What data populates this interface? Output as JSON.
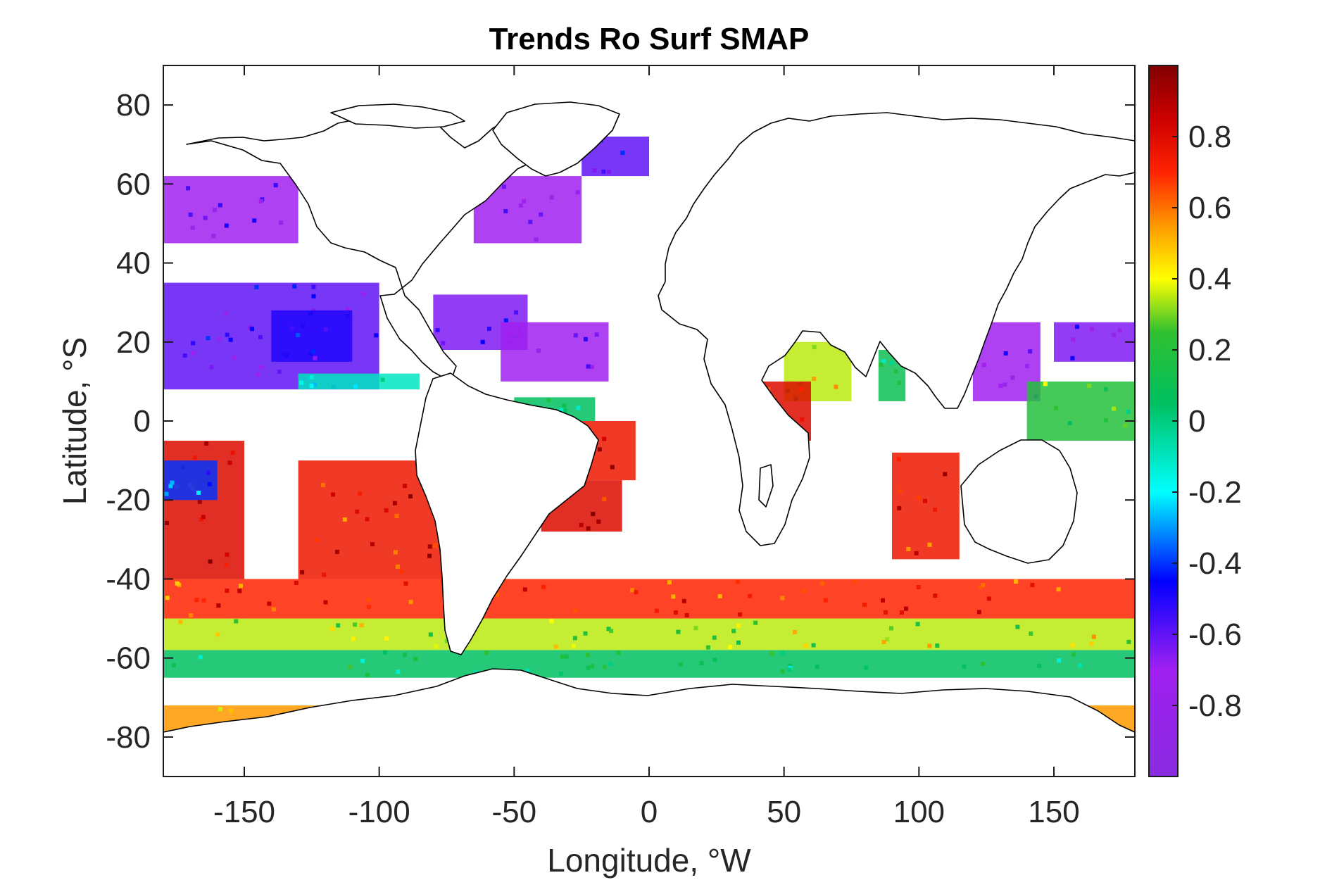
{
  "chart_data": {
    "type": "heatmap",
    "title": "Trends Ro Surf SMAP",
    "xlabel": "Longitude, °W",
    "ylabel": "Latitude, °S",
    "xlim": [
      -180,
      180
    ],
    "ylim": [
      -90,
      90
    ],
    "x_ticks": [
      -150,
      -100,
      -50,
      0,
      50,
      100,
      150
    ],
    "x_tick_labels": [
      "-150",
      "-100",
      "-50",
      "0",
      "50",
      "100",
      "150"
    ],
    "y_ticks": [
      80,
      60,
      40,
      20,
      0,
      -20,
      -40,
      -60,
      -80
    ],
    "y_tick_labels": [
      "80",
      "60",
      "40",
      "20",
      "0",
      "-20",
      "-40",
      "-60",
      "-80"
    ],
    "grid": false,
    "colorbar": {
      "placement": "right",
      "clim": [
        -1,
        1
      ],
      "ticks": [
        0.8,
        0.6,
        0.4,
        0.2,
        0,
        -0.2,
        -0.4,
        -0.6,
        -0.8
      ],
      "tick_labels": [
        "0.8",
        "0.6",
        "0.4",
        "0.2",
        "0",
        "-0.2",
        "-0.4",
        "-0.6",
        "-0.8"
      ],
      "colormap_stops": [
        {
          "value": -1.0,
          "color": "#8a2be2"
        },
        {
          "value": -0.7,
          "color": "#a020f0"
        },
        {
          "value": -0.45,
          "color": "#0000ff"
        },
        {
          "value": -0.2,
          "color": "#00ffff"
        },
        {
          "value": 0.05,
          "color": "#00c060"
        },
        {
          "value": 0.25,
          "color": "#30c030"
        },
        {
          "value": 0.4,
          "color": "#ffff00"
        },
        {
          "value": 0.55,
          "color": "#ff9900"
        },
        {
          "value": 0.7,
          "color": "#ff2200"
        },
        {
          "value": 0.85,
          "color": "#cc0000"
        },
        {
          "value": 1.0,
          "color": "#800000"
        }
      ]
    },
    "regions": [
      {
        "value": -0.7,
        "lon": [
          -180,
          -130
        ],
        "lat": [
          45,
          62
        ]
      },
      {
        "value": -0.6,
        "lon": [
          -180,
          -100
        ],
        "lat": [
          8,
          35
        ]
      },
      {
        "value": -0.5,
        "lon": [
          -140,
          -110
        ],
        "lat": [
          15,
          28
        ]
      },
      {
        "value": -0.1,
        "lon": [
          -130,
          -85
        ],
        "lat": [
          8,
          12
        ]
      },
      {
        "value": -0.7,
        "lon": [
          -65,
          -25
        ],
        "lat": [
          45,
          62
        ]
      },
      {
        "value": -0.6,
        "lon": [
          -25,
          0
        ],
        "lat": [
          62,
          72
        ]
      },
      {
        "value": -0.65,
        "lon": [
          -80,
          -45
        ],
        "lat": [
          18,
          32
        ]
      },
      {
        "value": -0.7,
        "lon": [
          -55,
          -15
        ],
        "lat": [
          10,
          25
        ]
      },
      {
        "value": 0.05,
        "lon": [
          -50,
          -20
        ],
        "lat": [
          0,
          6
        ]
      },
      {
        "value": 0.75,
        "lon": [
          -45,
          -5
        ],
        "lat": [
          -15,
          0
        ]
      },
      {
        "value": 0.8,
        "lon": [
          -40,
          -10
        ],
        "lat": [
          -28,
          -15
        ]
      },
      {
        "value": 0.35,
        "lon": [
          50,
          75
        ],
        "lat": [
          5,
          20
        ]
      },
      {
        "value": 0.8,
        "lon": [
          40,
          60
        ],
        "lat": [
          -5,
          10
        ]
      },
      {
        "value": 0.1,
        "lon": [
          85,
          95
        ],
        "lat": [
          5,
          18
        ]
      },
      {
        "value": 0.75,
        "lon": [
          90,
          115
        ],
        "lat": [
          -35,
          -8
        ]
      },
      {
        "value": -0.7,
        "lon": [
          120,
          145
        ],
        "lat": [
          5,
          25
        ]
      },
      {
        "value": -0.65,
        "lon": [
          150,
          180
        ],
        "lat": [
          15,
          25
        ]
      },
      {
        "value": 0.2,
        "lon": [
          140,
          180
        ],
        "lat": [
          -5,
          10
        ]
      },
      {
        "value": 0.8,
        "lon": [
          -180,
          -150
        ],
        "lat": [
          -40,
          -5
        ]
      },
      {
        "value": -0.4,
        "lon": [
          -180,
          -160
        ],
        "lat": [
          -20,
          -10
        ]
      },
      {
        "value": 0.75,
        "lon": [
          -130,
          -75
        ],
        "lat": [
          -40,
          -10
        ]
      },
      {
        "value": 0.7,
        "lon": [
          -180,
          180
        ],
        "lat": [
          -50,
          -40
        ]
      },
      {
        "value": 0.35,
        "lon": [
          -180,
          180
        ],
        "lat": [
          -58,
          -50
        ]
      },
      {
        "value": 0.05,
        "lon": [
          -180,
          180
        ],
        "lat": [
          -65,
          -58
        ]
      },
      {
        "value": 0.55,
        "lon": [
          -180,
          180
        ],
        "lat": [
          -79,
          -72
        ]
      }
    ]
  }
}
